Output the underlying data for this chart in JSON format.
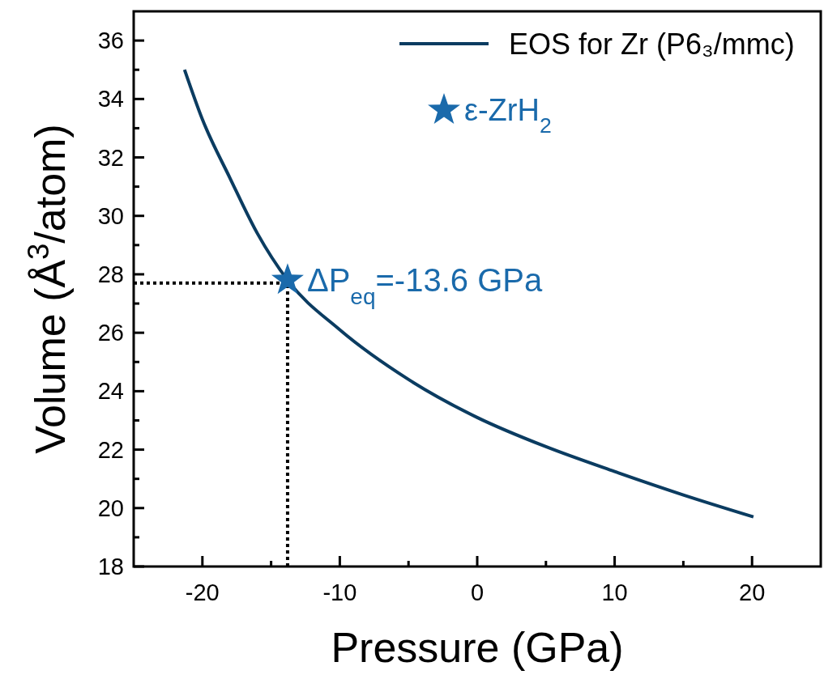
{
  "chart_data": {
    "type": "line",
    "xlabel": "Pressure (GPa)",
    "ylabel": "Volume (Å$^{3}$/atom)",
    "xlim": [
      -25,
      25
    ],
    "ylim": [
      18,
      37
    ],
    "xticks": [
      -20,
      {
        "value": -15,
        "label": null
      },
      -10,
      {
        "value": -5,
        "label": null
      },
      0,
      {
        "value": 5,
        "label": null
      },
      10,
      {
        "value": 15,
        "label": null
      },
      20
    ],
    "yticks": [
      18,
      {
        "value": 19,
        "label": null
      },
      20,
      {
        "value": 21,
        "label": null
      },
      22,
      {
        "value": 23,
        "label": null
      },
      24,
      {
        "value": 25,
        "label": null
      },
      26,
      {
        "value": 27,
        "label": null
      },
      28,
      {
        "value": 29,
        "label": null
      },
      30,
      {
        "value": 31,
        "label": null
      },
      32,
      {
        "value": 33,
        "label": null
      },
      34,
      {
        "value": 35,
        "label": null
      },
      36
    ],
    "series": [
      {
        "name": "EOS for Zr (P6₃/mmc)",
        "color": "#0b3c61",
        "marker": "none",
        "line_style": "solid",
        "x": [
          -21.3,
          -20,
          -18,
          -16,
          -13.8,
          -10,
          -5,
          0,
          5,
          10,
          15,
          20.1
        ],
        "values": [
          35,
          33.3,
          31.3,
          29.4,
          27.8,
          26.1,
          24.4,
          23.1,
          22.1,
          21.25,
          20.45,
          19.7
        ]
      },
      {
        "name": "ε-ZrH$_{2}$",
        "type": "scatter",
        "color": "#1a6aab",
        "marker": "star",
        "x": [
          -13.8
        ],
        "values": [
          27.8
        ]
      }
    ],
    "ref_lines": [
      {
        "axis": "x",
        "value": -13.8,
        "color": "#000000",
        "line_style": "dotted"
      },
      {
        "axis": "y",
        "value": 27.7,
        "color": "#000000",
        "line_style": "dotted"
      }
    ],
    "annotations": [
      {
        "text": "ΔP$_{eq}$=-13.6 GPa",
        "x": -13.8,
        "y": 27.8
      }
    ],
    "legend": "top right",
    "grid": false
  }
}
